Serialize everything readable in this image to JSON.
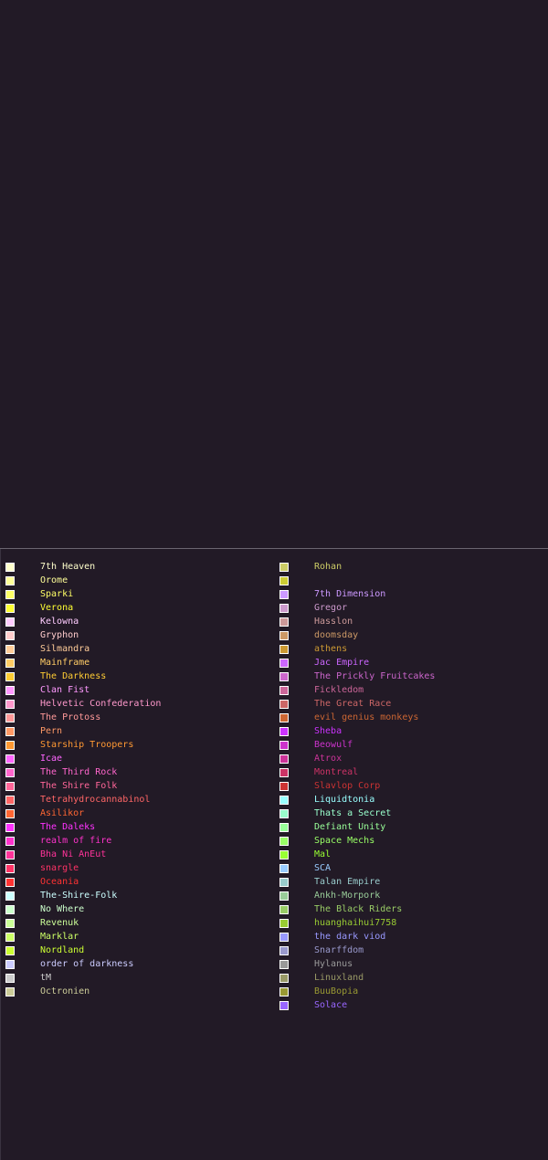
{
  "chart_data": {
    "type": "scatter",
    "title": "",
    "grid": false,
    "legend_position": "bottom",
    "xlim": [
      0,
      600
    ],
    "ylim": [
      0,
      600
    ],
    "series": [
      {
        "name": "7th Heaven",
        "color": "#ffffcc",
        "marker": "square",
        "points": []
      },
      {
        "name": "Orome",
        "color": "#ffff99",
        "marker": "circle",
        "points": []
      },
      {
        "name": "Sparki",
        "color": "#ffff66",
        "marker": "circle",
        "points": []
      },
      {
        "name": "Verona",
        "color": "#ffff33",
        "marker": "square",
        "points": []
      },
      {
        "name": "Kelowna",
        "color": "#ffccff",
        "marker": "circle",
        "points": []
      },
      {
        "name": "Gryphon",
        "color": "#ffcccc",
        "marker": "circle",
        "points": []
      },
      {
        "name": "Silmandra",
        "color": "#ffcc99",
        "marker": "circle",
        "points": []
      },
      {
        "name": "Mainframe",
        "color": "#ffcc66",
        "marker": "circle",
        "points": []
      },
      {
        "name": "The Darkness",
        "color": "#ffcc33",
        "marker": "circle",
        "points": []
      },
      {
        "name": "Clan Fist",
        "color": "#ff99ff",
        "marker": "circle",
        "points": []
      },
      {
        "name": "Helvetic Confederation",
        "color": "#ff99cc",
        "marker": "circle",
        "points": []
      },
      {
        "name": "The Protoss",
        "color": "#ff9999",
        "marker": "circle",
        "points": []
      },
      {
        "name": "Pern",
        "color": "#ff9966",
        "marker": "circle",
        "points": []
      },
      {
        "name": "Starship Troopers",
        "color": "#ff9933",
        "marker": "circle",
        "points": []
      },
      {
        "name": "Icae",
        "color": "#ff66ff",
        "marker": "circle",
        "points": []
      },
      {
        "name": "The Third Rock",
        "color": "#ff66cc",
        "marker": "circle",
        "points": []
      },
      {
        "name": "The Shire Folk",
        "color": "#ff6699",
        "marker": "circle",
        "points": []
      },
      {
        "name": "Tetrahydrocannabinol",
        "color": "#ff6666",
        "marker": "circle",
        "points": []
      },
      {
        "name": "Asilikor",
        "color": "#ff6633",
        "marker": "circle",
        "points": []
      },
      {
        "name": "The Daleks",
        "color": "#ff33ff",
        "marker": "circle",
        "points": []
      },
      {
        "name": "realm of fire",
        "color": "#ff33cc",
        "marker": "circle",
        "points": []
      },
      {
        "name": "Bha Ni AnEut",
        "color": "#ff3399",
        "marker": "circle",
        "points": []
      },
      {
        "name": "snargle",
        "color": "#ff3366",
        "marker": "square",
        "points": []
      },
      {
        "name": "Oceania",
        "color": "#ff3333",
        "marker": "circle",
        "points": []
      },
      {
        "name": "The-Shire-Folk",
        "color": "#ccffff",
        "marker": "circle",
        "points": []
      },
      {
        "name": "No Where",
        "color": "#ccffcc",
        "marker": "circle",
        "points": []
      },
      {
        "name": "Revenuk",
        "color": "#ccff99",
        "marker": "circle",
        "points": []
      },
      {
        "name": "Marklar",
        "color": "#ccff66",
        "marker": "circle",
        "points": []
      },
      {
        "name": "Nordland",
        "color": "#ccff33",
        "marker": "circle",
        "points": []
      },
      {
        "name": "order of darkness",
        "color": "#ccccff",
        "marker": "circle",
        "points": []
      },
      {
        "name": "tM",
        "color": "#cccccc",
        "marker": "circle",
        "points": []
      },
      {
        "name": "Octronien",
        "color": "#cccc99",
        "marker": "circle",
        "points": []
      },
      {
        "name": "Rohan",
        "color": "#cccc66",
        "marker": "circle",
        "points": []
      },
      {
        "name": "",
        "color": "#cccc33",
        "marker": "circle",
        "points": []
      },
      {
        "name": "7th Dimension",
        "color": "#cc99ff",
        "marker": "circle",
        "points": []
      },
      {
        "name": "Gregor",
        "color": "#cc99cc",
        "marker": "circle",
        "points": []
      },
      {
        "name": "Hasslon",
        "color": "#cc9999",
        "marker": "circle",
        "points": []
      },
      {
        "name": "doomsday",
        "color": "#cc9966",
        "marker": "circle",
        "points": []
      },
      {
        "name": "athens",
        "color": "#cc9933",
        "marker": "circle",
        "points": []
      },
      {
        "name": "Jac Empire",
        "color": "#cc66ff",
        "marker": "circle",
        "points": []
      },
      {
        "name": "The Prickly Fruitcakes",
        "color": "#cc66cc",
        "marker": "circle",
        "points": []
      },
      {
        "name": "Fickledom",
        "color": "#cc6699",
        "marker": "circle",
        "points": []
      },
      {
        "name": "The Great Race",
        "color": "#cc6666",
        "marker": "circle",
        "points": []
      },
      {
        "name": "evil genius monkeys",
        "color": "#cc6633",
        "marker": "circle",
        "points": []
      },
      {
        "name": "Sheba",
        "color": "#cc33ff",
        "marker": "circle",
        "points": []
      },
      {
        "name": "Beowulf",
        "color": "#cc33cc",
        "marker": "circle",
        "points": []
      },
      {
        "name": "Atrox",
        "color": "#cc3399",
        "marker": "circle",
        "points": []
      },
      {
        "name": "Montreal",
        "color": "#cc3366",
        "marker": "circle",
        "points": []
      },
      {
        "name": "Slavlop Corp",
        "color": "#cc3333",
        "marker": "circle",
        "points": []
      },
      {
        "name": "Liquidtonia",
        "color": "#99ffff",
        "marker": "circle",
        "points": []
      },
      {
        "name": "Thats a Secret",
        "color": "#99ffcc",
        "marker": "circle",
        "points": []
      },
      {
        "name": "Defiant Unity",
        "color": "#99ff99",
        "marker": "circle",
        "points": []
      },
      {
        "name": "Space Mechs",
        "color": "#99ff66",
        "marker": "circle",
        "points": []
      },
      {
        "name": "Mal",
        "color": "#99ff33",
        "marker": "circle",
        "points": []
      },
      {
        "name": "SCA",
        "color": "#99ccff",
        "marker": "circle",
        "points": []
      },
      {
        "name": "Talan Empire",
        "color": "#99cccc",
        "marker": "circle",
        "points": []
      },
      {
        "name": "Ankh-Morpork",
        "color": "#99cc99",
        "marker": "circle",
        "points": []
      },
      {
        "name": "The Black Riders",
        "color": "#99cc66",
        "marker": "circle",
        "points": []
      },
      {
        "name": "huanghaihui7758",
        "color": "#99cc33",
        "marker": "circle",
        "points": []
      },
      {
        "name": "the dark viod",
        "color": "#9999ff",
        "marker": "circle",
        "points": []
      },
      {
        "name": "Snarffdom",
        "color": "#9999cc",
        "marker": "circle",
        "points": []
      },
      {
        "name": "Hylanus",
        "color": "#999999",
        "marker": "circle",
        "points": []
      },
      {
        "name": "Linuxland",
        "color": "#999966",
        "marker": "circle",
        "points": []
      },
      {
        "name": "BuuBopia",
        "color": "#999933",
        "marker": "circle",
        "points": []
      },
      {
        "name": "Solace",
        "color": "#9966ff",
        "marker": "circle",
        "points": []
      }
    ]
  },
  "legend": {
    "left": [
      {
        "label": "7th Heaven",
        "color": "#ffffcc"
      },
      {
        "label": "Orome",
        "color": "#ffff99"
      },
      {
        "label": "Sparki",
        "color": "#ffff66"
      },
      {
        "label": "Verona",
        "color": "#ffff33"
      },
      {
        "label": "Kelowna",
        "color": "#ffccff"
      },
      {
        "label": "Gryphon",
        "color": "#ffcccc"
      },
      {
        "label": "Silmandra",
        "color": "#ffcc99"
      },
      {
        "label": "Mainframe",
        "color": "#ffcc66"
      },
      {
        "label": "The Darkness",
        "color": "#ffcc33"
      },
      {
        "label": "Clan Fist",
        "color": "#ff99ff"
      },
      {
        "label": "Helvetic Confederation",
        "color": "#ff99cc"
      },
      {
        "label": "The Protoss",
        "color": "#ff9999"
      },
      {
        "label": "Pern",
        "color": "#ff9966"
      },
      {
        "label": "Starship Troopers",
        "color": "#ff9933"
      },
      {
        "label": "Icae",
        "color": "#ff66ff"
      },
      {
        "label": "The Third Rock",
        "color": "#ff66cc"
      },
      {
        "label": "The Shire Folk",
        "color": "#ff6699"
      },
      {
        "label": "Tetrahydrocannabinol",
        "color": "#ff6666"
      },
      {
        "label": "Asilikor",
        "color": "#ff6633"
      },
      {
        "label": "The Daleks",
        "color": "#ff33ff"
      },
      {
        "label": "realm of fire",
        "color": "#ff33cc"
      },
      {
        "label": "Bha Ni AnEut",
        "color": "#ff3399"
      },
      {
        "label": "snargle",
        "color": "#ff3366"
      },
      {
        "label": "Oceania",
        "color": "#ff3333"
      },
      {
        "label": "The-Shire-Folk",
        "color": "#ccffff"
      },
      {
        "label": "No Where",
        "color": "#ccffcc"
      },
      {
        "label": "Revenuk",
        "color": "#ccff99"
      },
      {
        "label": "Marklar",
        "color": "#ccff66"
      },
      {
        "label": "Nordland",
        "color": "#ccff33"
      },
      {
        "label": "order of darkness",
        "color": "#ccccff"
      },
      {
        "label": "tM",
        "color": "#cccccc"
      },
      {
        "label": "Octronien",
        "color": "#cccc99"
      }
    ],
    "right": [
      {
        "label": "Rohan",
        "color": "#cccc66"
      },
      {
        "label": "",
        "color": "#cccc33"
      },
      {
        "label": "7th Dimension",
        "color": "#cc99ff"
      },
      {
        "label": "Gregor",
        "color": "#cc99cc"
      },
      {
        "label": "Hasslon",
        "color": "#cc9999"
      },
      {
        "label": "doomsday",
        "color": "#cc9966"
      },
      {
        "label": "athens",
        "color": "#cc9933"
      },
      {
        "label": "Jac Empire",
        "color": "#cc66ff"
      },
      {
        "label": "The Prickly Fruitcakes",
        "color": "#cc66cc"
      },
      {
        "label": "Fickledom",
        "color": "#cc6699"
      },
      {
        "label": "The Great Race",
        "color": "#cc6666"
      },
      {
        "label": "evil genius monkeys",
        "color": "#cc6633"
      },
      {
        "label": "Sheba",
        "color": "#cc33ff"
      },
      {
        "label": "Beowulf",
        "color": "#cc33cc"
      },
      {
        "label": "Atrox",
        "color": "#cc3399"
      },
      {
        "label": "Montreal",
        "color": "#cc3366"
      },
      {
        "label": "Slavlop Corp",
        "color": "#cc3333"
      },
      {
        "label": "Liquidtonia",
        "color": "#99ffff"
      },
      {
        "label": "Thats a Secret",
        "color": "#99ffcc"
      },
      {
        "label": "Defiant Unity",
        "color": "#99ff99"
      },
      {
        "label": "Space Mechs",
        "color": "#99ff66"
      },
      {
        "label": "Mal",
        "color": "#99ff33"
      },
      {
        "label": "SCA",
        "color": "#99ccff"
      },
      {
        "label": "Talan Empire",
        "color": "#99cccc"
      },
      {
        "label": "Ankh-Morpork",
        "color": "#99cc99"
      },
      {
        "label": "The Black Riders",
        "color": "#99cc66"
      },
      {
        "label": "huanghaihui7758",
        "color": "#99cc33"
      },
      {
        "label": "the dark viod",
        "color": "#9999ff"
      },
      {
        "label": "Snarffdom",
        "color": "#9999cc"
      },
      {
        "label": "Hylanus",
        "color": "#999999"
      },
      {
        "label": "Linuxland",
        "color": "#999966"
      },
      {
        "label": "BuuBopia",
        "color": "#999933"
      },
      {
        "label": "Solace",
        "color": "#9966ff"
      }
    ]
  }
}
